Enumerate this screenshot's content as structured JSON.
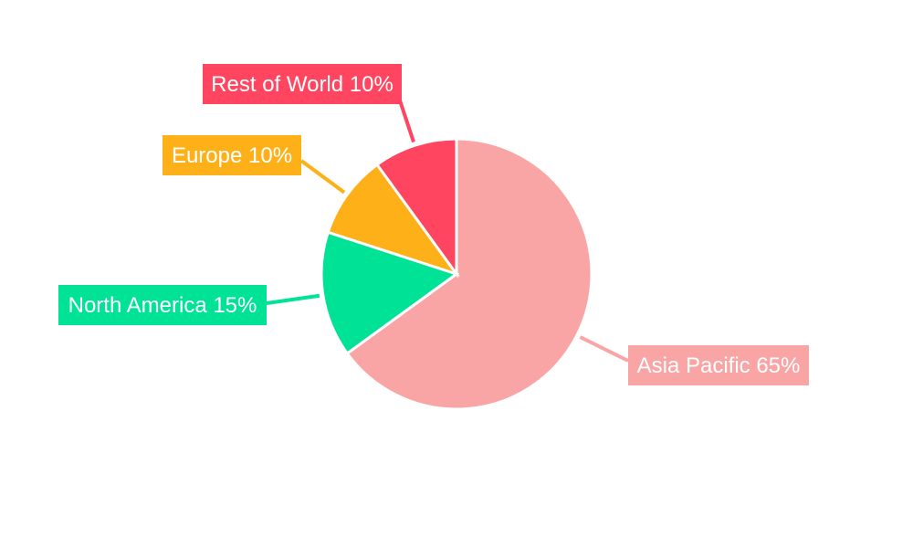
{
  "chart_data": {
    "type": "pie",
    "title": "",
    "start_angle": "top, clockwise",
    "slices": [
      {
        "label": "Asia Pacific",
        "value": 65,
        "text": "Asia Pacific 65%",
        "color": "#F9A5A6"
      },
      {
        "label": "North America",
        "value": 15,
        "text": "North America 15%",
        "color": "#00E396"
      },
      {
        "label": "Europe",
        "value": 10,
        "text": "Europe 10%",
        "color": "#FEB019"
      },
      {
        "label": "Rest of World",
        "value": 10,
        "text": "Rest of World 10%",
        "color": "#FF4560"
      }
    ]
  }
}
